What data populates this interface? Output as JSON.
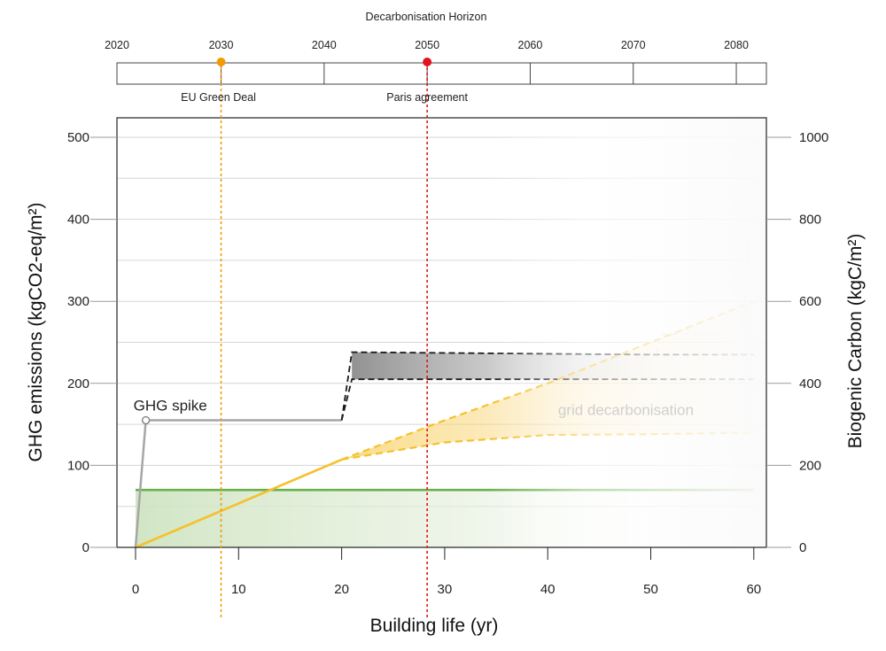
{
  "chart_data": {
    "type": "line",
    "xlabel": "Building life (yr)",
    "ylabel_left": "GHG emissions (kgCO2-eq/m²)",
    "ylabel_right": "Biogenic Carbon (kgC/m²)",
    "xlim": [
      0,
      60
    ],
    "ylim_left": [
      0,
      500
    ],
    "ylim_right": [
      0,
      1000
    ],
    "x_ticks": [
      "0",
      "10",
      "20",
      "30",
      "40",
      "50",
      "60"
    ],
    "y_left_ticks": [
      "0",
      "100",
      "200",
      "300",
      "400",
      "500"
    ],
    "y_right_ticks": [
      "0",
      "200",
      "400",
      "600",
      "800",
      "1000"
    ],
    "grid": true,
    "horizon": {
      "title": "Decarbonisation Horizon",
      "years": [
        "2020",
        "2030",
        "2040",
        "2050",
        "2060",
        "2070",
        "2080"
      ],
      "events": [
        {
          "label": "EU Green Deal",
          "year": 2030,
          "building_year": 8.3,
          "color": "#f29a00"
        },
        {
          "label": "Paris agreement",
          "year": 2050,
          "building_year": 28.3,
          "color": "#e3131b"
        }
      ]
    },
    "series": [
      {
        "name": "GHG spike",
        "color": "#a6a6a6",
        "x": [
          0,
          1,
          20
        ],
        "y": [
          0,
          155,
          155
        ]
      },
      {
        "name": "",
        "color": "#1a1a1a",
        "band_upper": {
          "x": [
            20,
            21,
            50,
            50.5,
            60
          ],
          "y": [
            155,
            238,
            235,
            235,
            235
          ]
        },
        "band_lower": {
          "x": [
            20,
            21,
            60
          ],
          "y": [
            155,
            205,
            205
          ]
        }
      },
      {
        "name": "",
        "color": "#f5c12c",
        "x": [
          0,
          20
        ],
        "y": [
          0,
          107
        ]
      },
      {
        "name": "grid decarbonisation",
        "color": "#f5c12c",
        "band_upper": {
          "x": [
            20,
            30,
            40,
            50,
            60
          ],
          "y": [
            107,
            155,
            200,
            250,
            300
          ]
        },
        "band_lower": {
          "x": [
            20,
            30,
            40,
            50,
            60
          ],
          "y": [
            107,
            128,
            137,
            138,
            140
          ]
        }
      },
      {
        "name": "",
        "color": "#6ab04c",
        "axis": "right",
        "x": [
          0,
          60
        ],
        "y": [
          140,
          140
        ]
      },
      {
        "name": "",
        "color": "#eeeeee",
        "x": [
          50.5,
          51,
          59,
          59.5,
          60
        ],
        "y": [
          235,
          260,
          260,
          380,
          380
        ]
      }
    ],
    "annotations": [
      {
        "text": "GHG spike",
        "x": 1,
        "y": 170
      },
      {
        "text": "grid decarbonisation",
        "x": 41,
        "y": 168
      }
    ]
  }
}
